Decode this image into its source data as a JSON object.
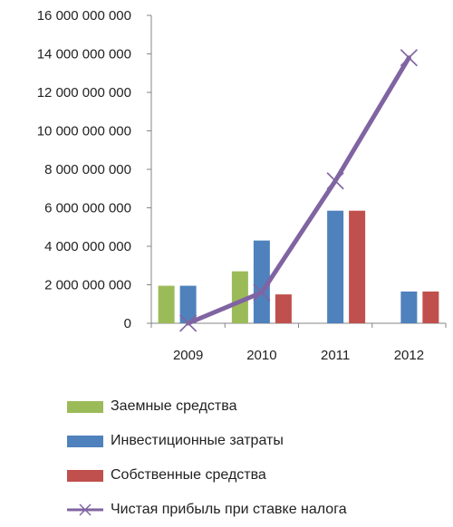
{
  "chart_data": {
    "type": "bar",
    "categories": [
      "2009",
      "2010",
      "2011",
      "2012"
    ],
    "ylim": [
      0,
      16000000000
    ],
    "yticks": [
      0,
      2000000000,
      4000000000,
      6000000000,
      8000000000,
      10000000000,
      12000000000,
      14000000000,
      16000000000
    ],
    "ytick_labels": [
      "0",
      "2 000 000 000",
      "4 000 000 000",
      "6 000 000 000",
      "8 000 000 000",
      "10 000 000 000",
      "12 000 000 000",
      "14 000 000 000",
      "16 000 000 000"
    ],
    "grid": false,
    "legend_position": "bottom",
    "series": [
      {
        "name": "Заемные средства",
        "type": "bar",
        "color": "#9BBB59",
        "values": [
          1950000000,
          2700000000,
          null,
          null
        ]
      },
      {
        "name": "Инвестиционные затраты",
        "type": "bar",
        "color": "#4F81BD",
        "values": [
          1950000000,
          4300000000,
          5850000000,
          1650000000
        ]
      },
      {
        "name": "Собственные средства",
        "type": "bar",
        "color": "#C0504D",
        "values": [
          null,
          1500000000,
          5850000000,
          1650000000
        ]
      },
      {
        "name": "Чистая прибыль при ставке налога",
        "type": "line",
        "color": "#8064A2",
        "marker": "x",
        "values": [
          0,
          1600000000,
          7400000000,
          13800000000
        ]
      }
    ]
  }
}
